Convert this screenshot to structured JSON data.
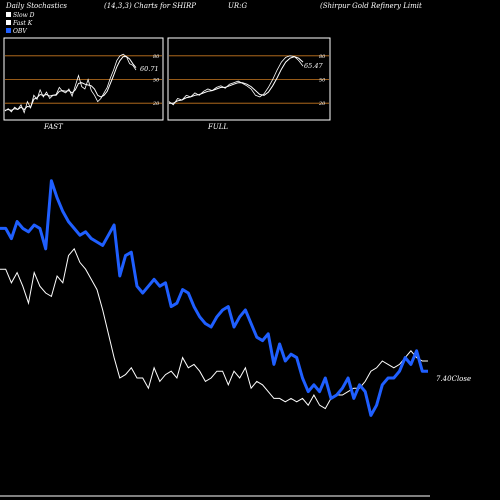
{
  "header": {
    "title": "Daily Stochastics",
    "params": "(14,3,3) Charts for SHIRP",
    "symbol": "UR:G",
    "company": "(Shirpur Gold Refinery Limit"
  },
  "legend": [
    {
      "label": "Slow D",
      "color": "#ffffff"
    },
    {
      "label": "Fast K",
      "color": "#ffffff"
    },
    {
      "label": "OBV",
      "color": "#1f5fff"
    }
  ],
  "colors": {
    "background": "#000000",
    "panel_border": "#ffffff",
    "level_line": "#c87820",
    "obv": "#1f5fff",
    "close": "#ffffff"
  },
  "chart_data": [
    {
      "type": "line",
      "panel": "FAST",
      "label": "FAST",
      "levels": [
        80,
        50,
        20
      ],
      "ylim": [
        0,
        100
      ],
      "last_value_label": "60.71",
      "series": [
        {
          "name": "Fast K",
          "values": [
            10,
            13,
            9,
            15,
            12,
            18,
            8,
            22,
            14,
            30,
            25,
            37,
            28,
            34,
            26,
            30,
            31,
            40,
            35,
            33,
            38,
            29,
            42,
            55,
            41,
            38,
            50,
            36,
            30,
            22,
            26,
            33,
            40,
            52,
            62,
            74,
            80,
            82,
            79,
            70,
            68,
            62
          ]
        },
        {
          "name": "Slow D",
          "values": [
            11,
            12,
            11,
            13,
            12,
            15,
            12,
            16,
            15,
            25,
            27,
            31,
            30,
            31,
            29,
            30,
            30,
            35,
            36,
            35,
            36,
            33,
            37,
            45,
            46,
            44,
            43,
            42,
            38,
            30,
            28,
            30,
            35,
            45,
            55,
            66,
            74,
            79,
            79,
            76,
            70,
            65
          ]
        }
      ]
    },
    {
      "type": "line",
      "panel": "FULL",
      "label": "FULL",
      "levels": [
        80,
        50,
        20
      ],
      "ylim": [
        0,
        100
      ],
      "last_value_label": "65.47",
      "series": [
        {
          "name": "Fast K",
          "values": [
            22,
            18,
            26,
            24,
            30,
            28,
            33,
            30,
            35,
            38,
            36,
            40,
            42,
            39,
            44,
            46,
            48,
            45,
            42,
            38,
            30,
            28,
            32,
            40,
            50,
            62,
            72,
            78,
            80,
            79,
            74,
            67
          ]
        },
        {
          "name": "Slow D",
          "values": [
            20,
            20,
            23,
            24,
            27,
            28,
            30,
            31,
            33,
            35,
            36,
            38,
            40,
            40,
            42,
            44,
            46,
            46,
            44,
            41,
            36,
            31,
            30,
            34,
            42,
            52,
            63,
            72,
            77,
            79,
            77,
            72
          ]
        }
      ]
    },
    {
      "type": "line",
      "panel": "main",
      "close_label": "7.40Close",
      "series": [
        {
          "name": "OBV",
          "values": [
            74,
            74,
            71,
            76,
            74,
            73,
            75,
            74,
            68,
            88,
            83,
            79,
            76,
            74,
            72,
            73,
            71,
            70,
            69,
            72,
            75,
            60,
            66,
            67,
            57,
            55,
            57,
            59,
            57,
            58,
            51,
            52,
            56,
            55,
            51,
            48,
            46,
            45,
            48,
            50,
            51,
            45,
            48,
            50,
            46,
            42,
            41,
            43,
            34,
            40,
            35,
            37,
            36,
            30,
            26,
            28,
            26,
            30,
            24,
            25,
            27,
            30,
            24,
            28,
            26,
            19,
            22,
            28,
            30,
            30,
            32,
            36,
            34,
            38,
            32,
            32
          ]
        },
        {
          "name": "Close",
          "values": [
            62,
            62,
            58,
            61,
            57,
            52,
            61,
            57,
            55,
            54,
            60,
            58,
            66,
            68,
            64,
            62,
            59,
            56,
            50,
            43,
            36,
            30,
            31,
            33,
            30,
            30,
            27,
            33,
            29,
            31,
            32,
            30,
            36,
            33,
            34,
            32,
            29,
            30,
            32,
            32,
            28,
            32,
            30,
            33,
            27,
            29,
            28,
            26,
            24,
            24,
            23,
            24,
            23,
            24,
            22,
            25,
            22,
            21,
            24,
            25,
            25,
            26,
            27,
            27,
            29,
            32,
            33,
            35,
            34,
            33,
            34,
            36,
            38,
            36,
            35,
            35
          ]
        }
      ]
    }
  ]
}
